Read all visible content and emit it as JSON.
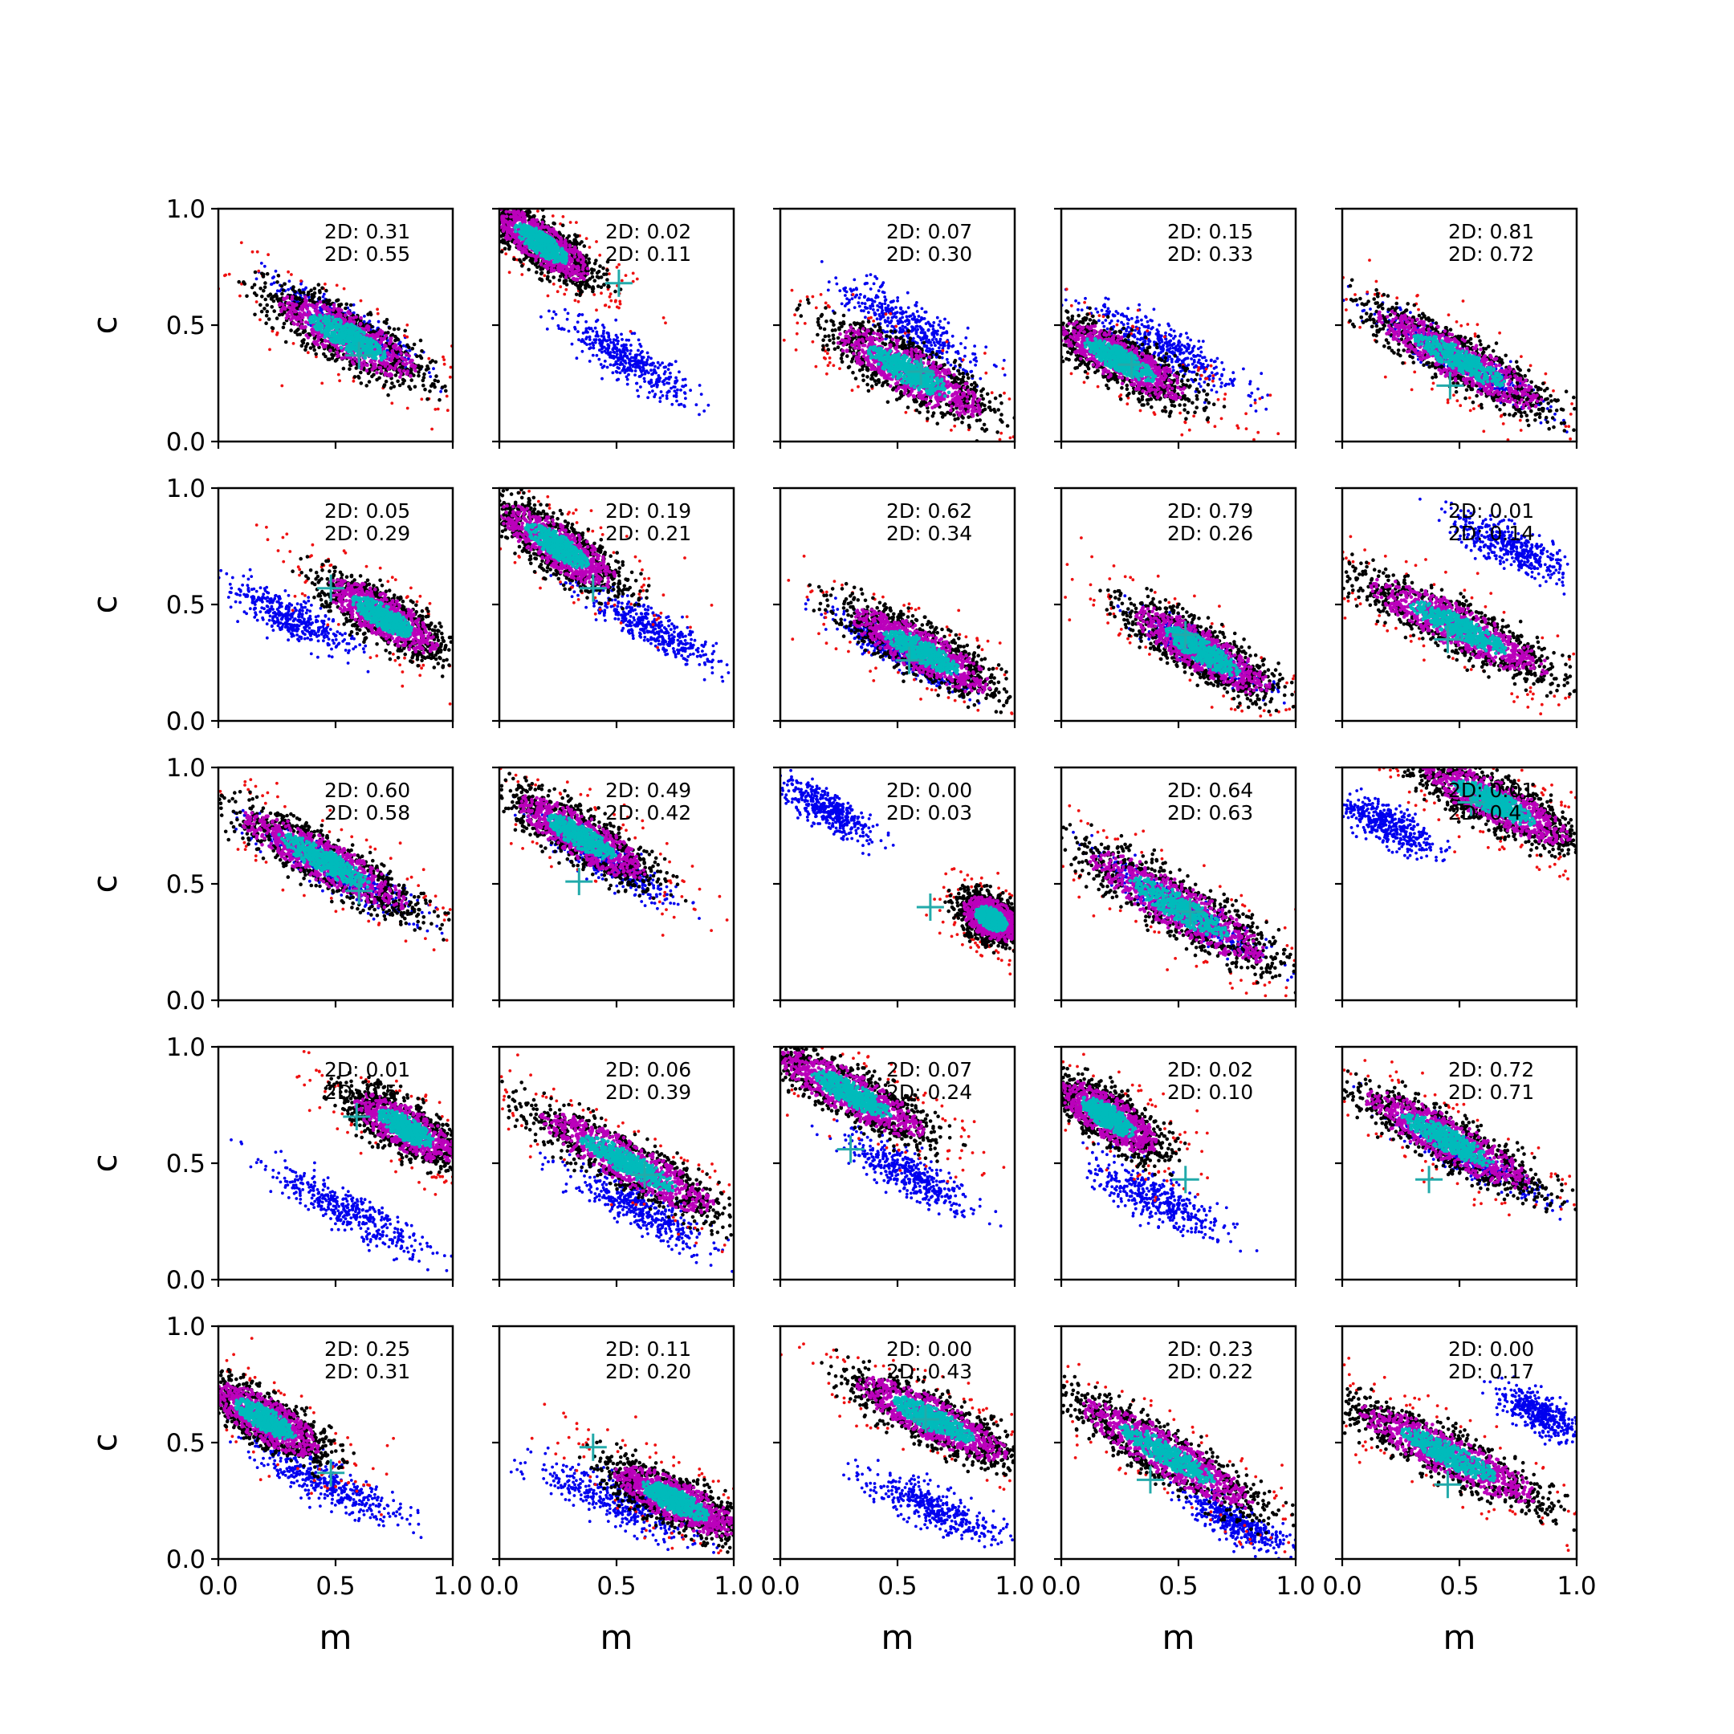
{
  "chart_data": {
    "type": "scatter",
    "layout": "5x5 grid of panels",
    "xlabel": "m",
    "ylabel": "c",
    "xlim": [
      0.0,
      1.0
    ],
    "ylim": [
      0.0,
      1.0
    ],
    "xticks": [
      "0.0",
      "0.5",
      "1.0"
    ],
    "yticks": [
      "0.0",
      "0.5",
      "1.0"
    ],
    "grid": false,
    "legend": "none",
    "colors": {
      "reference": "#0000ee",
      "outlier": "#ee1111",
      "samples": "#000000",
      "inner": "#bb00bb",
      "core": "#00bbbb",
      "marker": "#22aaaa"
    },
    "panels": [
      {
        "stat1": "2D: 0.31",
        "stat2": "2D: 0.55",
        "main": {
          "cx": 0.55,
          "cy": 0.45,
          "slope": -0.55,
          "len": 0.75,
          "width": 0.11
        },
        "ref": {
          "cx": 0.55,
          "cy": 0.5,
          "slope": -0.6,
          "len": 0.7,
          "width": 0.07
        },
        "marker": [
          0.6,
          0.37
        ]
      },
      {
        "stat1": "2D: 0.02",
        "stat2": "2D: 0.11",
        "main": {
          "cx": 0.18,
          "cy": 0.85,
          "slope": -0.7,
          "len": 0.55,
          "width": 0.09
        },
        "ref": {
          "cx": 0.55,
          "cy": 0.35,
          "slope": -0.6,
          "len": 0.6,
          "width": 0.08
        },
        "marker": [
          0.51,
          0.68
        ]
      },
      {
        "stat1": "2D: 0.07",
        "stat2": "2D: 0.30",
        "main": {
          "cx": 0.55,
          "cy": 0.3,
          "slope": -0.55,
          "len": 0.8,
          "width": 0.11
        },
        "ref": {
          "cx": 0.55,
          "cy": 0.5,
          "slope": -0.6,
          "len": 0.65,
          "width": 0.09
        },
        "marker": [
          0.6,
          0.3
        ]
      },
      {
        "stat1": "2D: 0.15",
        "stat2": "2D: 0.33",
        "main": {
          "cx": 0.25,
          "cy": 0.35,
          "slope": -0.55,
          "len": 0.7,
          "width": 0.1
        },
        "ref": {
          "cx": 0.45,
          "cy": 0.4,
          "slope": -0.55,
          "len": 0.75,
          "width": 0.09
        },
        "marker": [
          0.3,
          0.33
        ]
      },
      {
        "stat1": "2D: 0.81",
        "stat2": "2D: 0.72",
        "main": {
          "cx": 0.5,
          "cy": 0.35,
          "slope": -0.55,
          "len": 0.9,
          "width": 0.1
        },
        "ref": {
          "cx": 0.5,
          "cy": 0.35,
          "slope": -0.55,
          "len": 0.8,
          "width": 0.07
        },
        "marker": [
          0.46,
          0.24
        ]
      },
      {
        "stat1": "2D: 0.05",
        "stat2": "2D: 0.29",
        "main": {
          "cx": 0.7,
          "cy": 0.45,
          "slope": -0.6,
          "len": 0.6,
          "width": 0.1
        },
        "ref": {
          "cx": 0.3,
          "cy": 0.45,
          "slope": -0.5,
          "len": 0.6,
          "width": 0.08
        },
        "marker": [
          0.48,
          0.57
        ]
      },
      {
        "stat1": "2D: 0.19",
        "stat2": "2D: 0.21",
        "main": {
          "cx": 0.25,
          "cy": 0.75,
          "slope": -0.65,
          "len": 0.65,
          "width": 0.1
        },
        "ref": {
          "cx": 0.65,
          "cy": 0.4,
          "slope": -0.55,
          "len": 0.65,
          "width": 0.07
        },
        "marker": [
          0.4,
          0.57
        ]
      },
      {
        "stat1": "2D: 0.62",
        "stat2": "2D: 0.34",
        "main": {
          "cx": 0.6,
          "cy": 0.3,
          "slope": -0.55,
          "len": 0.75,
          "width": 0.1
        },
        "ref": {
          "cx": 0.5,
          "cy": 0.3,
          "slope": -0.55,
          "len": 0.6,
          "width": 0.07
        },
        "marker": [
          0.55,
          0.26
        ]
      },
      {
        "stat1": "2D: 0.79",
        "stat2": "2D: 0.26",
        "main": {
          "cx": 0.6,
          "cy": 0.3,
          "slope": -0.6,
          "len": 0.75,
          "width": 0.1
        },
        "ref": {
          "cx": 0.6,
          "cy": 0.3,
          "slope": -0.6,
          "len": 0.6,
          "width": 0.07
        },
        "marker": [
          0.53,
          0.37
        ]
      },
      {
        "stat1": "2D: 0.01",
        "stat2": "2D: 0.14",
        "main": {
          "cx": 0.5,
          "cy": 0.4,
          "slope": -0.5,
          "len": 0.95,
          "width": 0.1
        },
        "ref": {
          "cx": 0.72,
          "cy": 0.75,
          "slope": -0.5,
          "len": 0.55,
          "width": 0.08
        },
        "marker": [
          0.45,
          0.35
        ]
      },
      {
        "stat1": "2D: 0.60",
        "stat2": "2D: 0.58",
        "main": {
          "cx": 0.45,
          "cy": 0.6,
          "slope": -0.55,
          "len": 0.9,
          "width": 0.1
        },
        "ref": {
          "cx": 0.5,
          "cy": 0.55,
          "slope": -0.55,
          "len": 0.8,
          "width": 0.07
        },
        "marker": [
          0.6,
          0.47
        ]
      },
      {
        "stat1": "2D: 0.49",
        "stat2": "2D: 0.42",
        "main": {
          "cx": 0.35,
          "cy": 0.7,
          "slope": -0.6,
          "len": 0.7,
          "width": 0.1
        },
        "ref": {
          "cx": 0.45,
          "cy": 0.6,
          "slope": -0.6,
          "len": 0.7,
          "width": 0.07
        },
        "marker": [
          0.34,
          0.51
        ]
      },
      {
        "stat1": "2D: 0.00",
        "stat2": "2D: 0.03",
        "main": {
          "cx": 0.9,
          "cy": 0.35,
          "slope": -0.6,
          "len": 0.3,
          "width": 0.09
        },
        "ref": {
          "cx": 0.2,
          "cy": 0.82,
          "slope": -0.6,
          "len": 0.45,
          "width": 0.07
        },
        "marker": [
          0.64,
          0.4
        ]
      },
      {
        "stat1": "2D: 0.64",
        "stat2": "2D: 0.63",
        "main": {
          "cx": 0.5,
          "cy": 0.4,
          "slope": -0.6,
          "len": 1.0,
          "width": 0.11
        },
        "ref": {
          "cx": 0.5,
          "cy": 0.4,
          "slope": -0.6,
          "len": 0.85,
          "width": 0.07
        },
        "marker": [
          0.55,
          0.38
        ]
      },
      {
        "stat1": "2D: 0.01",
        "stat2": "2D: 0.4",
        "main": {
          "cx": 0.65,
          "cy": 0.85,
          "slope": -0.5,
          "len": 0.8,
          "width": 0.1
        },
        "ref": {
          "cx": 0.2,
          "cy": 0.75,
          "slope": -0.5,
          "len": 0.45,
          "width": 0.08
        },
        "marker": [
          0.55,
          0.85
        ]
      },
      {
        "stat1": "2D: 0.01",
        "stat2": "2D: 0.5",
        "main": {
          "cx": 0.8,
          "cy": 0.65,
          "slope": -0.6,
          "len": 0.55,
          "width": 0.1
        },
        "ref": {
          "cx": 0.55,
          "cy": 0.3,
          "slope": -0.55,
          "len": 0.75,
          "width": 0.08
        },
        "marker": [
          0.59,
          0.7
        ]
      },
      {
        "stat1": "2D: 0.06",
        "stat2": "2D: 0.39",
        "main": {
          "cx": 0.55,
          "cy": 0.5,
          "slope": -0.55,
          "len": 0.95,
          "width": 0.1
        },
        "ref": {
          "cx": 0.6,
          "cy": 0.3,
          "slope": -0.55,
          "len": 0.65,
          "width": 0.08
        },
        "marker": [
          0.62,
          0.45
        ]
      },
      {
        "stat1": "2D: 0.07",
        "stat2": "2D: 0.24",
        "main": {
          "cx": 0.3,
          "cy": 0.8,
          "slope": -0.55,
          "len": 0.8,
          "width": 0.1
        },
        "ref": {
          "cx": 0.55,
          "cy": 0.45,
          "slope": -0.55,
          "len": 0.6,
          "width": 0.08
        },
        "marker": [
          0.3,
          0.56
        ]
      },
      {
        "stat1": "2D: 0.02",
        "stat2": "2D: 0.10",
        "main": {
          "cx": 0.2,
          "cy": 0.7,
          "slope": -0.65,
          "len": 0.55,
          "width": 0.1
        },
        "ref": {
          "cx": 0.4,
          "cy": 0.35,
          "slope": -0.5,
          "len": 0.65,
          "width": 0.09
        },
        "marker": [
          0.53,
          0.43
        ]
      },
      {
        "stat1": "2D: 0.72",
        "stat2": "2D: 0.71",
        "main": {
          "cx": 0.45,
          "cy": 0.6,
          "slope": -0.55,
          "len": 0.9,
          "width": 0.1
        },
        "ref": {
          "cx": 0.5,
          "cy": 0.55,
          "slope": -0.55,
          "len": 0.8,
          "width": 0.07
        },
        "marker": [
          0.37,
          0.43
        ]
      },
      {
        "stat1": "2D: 0.25",
        "stat2": "2D: 0.31",
        "main": {
          "cx": 0.2,
          "cy": 0.6,
          "slope": -0.6,
          "len": 0.6,
          "width": 0.1
        },
        "ref": {
          "cx": 0.45,
          "cy": 0.33,
          "slope": -0.5,
          "len": 0.75,
          "width": 0.08
        },
        "marker": [
          0.48,
          0.37
        ]
      },
      {
        "stat1": "2D: 0.11",
        "stat2": "2D: 0.20",
        "main": {
          "cx": 0.75,
          "cy": 0.25,
          "slope": -0.5,
          "len": 0.65,
          "width": 0.1
        },
        "ref": {
          "cx": 0.5,
          "cy": 0.25,
          "slope": -0.45,
          "len": 0.75,
          "width": 0.09
        },
        "marker": [
          0.4,
          0.48
        ]
      },
      {
        "stat1": "2D: 0.00",
        "stat2": "2D: 0.43",
        "main": {
          "cx": 0.65,
          "cy": 0.6,
          "slope": -0.5,
          "len": 0.8,
          "width": 0.1
        },
        "ref": {
          "cx": 0.65,
          "cy": 0.22,
          "slope": -0.45,
          "len": 0.6,
          "width": 0.08
        },
        "marker": [
          0.62,
          0.6
        ]
      },
      {
        "stat1": "2D: 0.23",
        "stat2": "2D: 0.22",
        "main": {
          "cx": 0.45,
          "cy": 0.45,
          "slope": -0.6,
          "len": 0.95,
          "width": 0.1
        },
        "ref": {
          "cx": 0.75,
          "cy": 0.15,
          "slope": -0.55,
          "len": 0.5,
          "width": 0.07
        },
        "marker": [
          0.38,
          0.34
        ]
      },
      {
        "stat1": "2D: 0.00",
        "stat2": "2D: 0.17",
        "main": {
          "cx": 0.45,
          "cy": 0.45,
          "slope": -0.5,
          "len": 0.95,
          "width": 0.1
        },
        "ref": {
          "cx": 0.85,
          "cy": 0.62,
          "slope": -0.5,
          "len": 0.4,
          "width": 0.07
        },
        "marker": [
          0.45,
          0.32
        ]
      }
    ]
  }
}
